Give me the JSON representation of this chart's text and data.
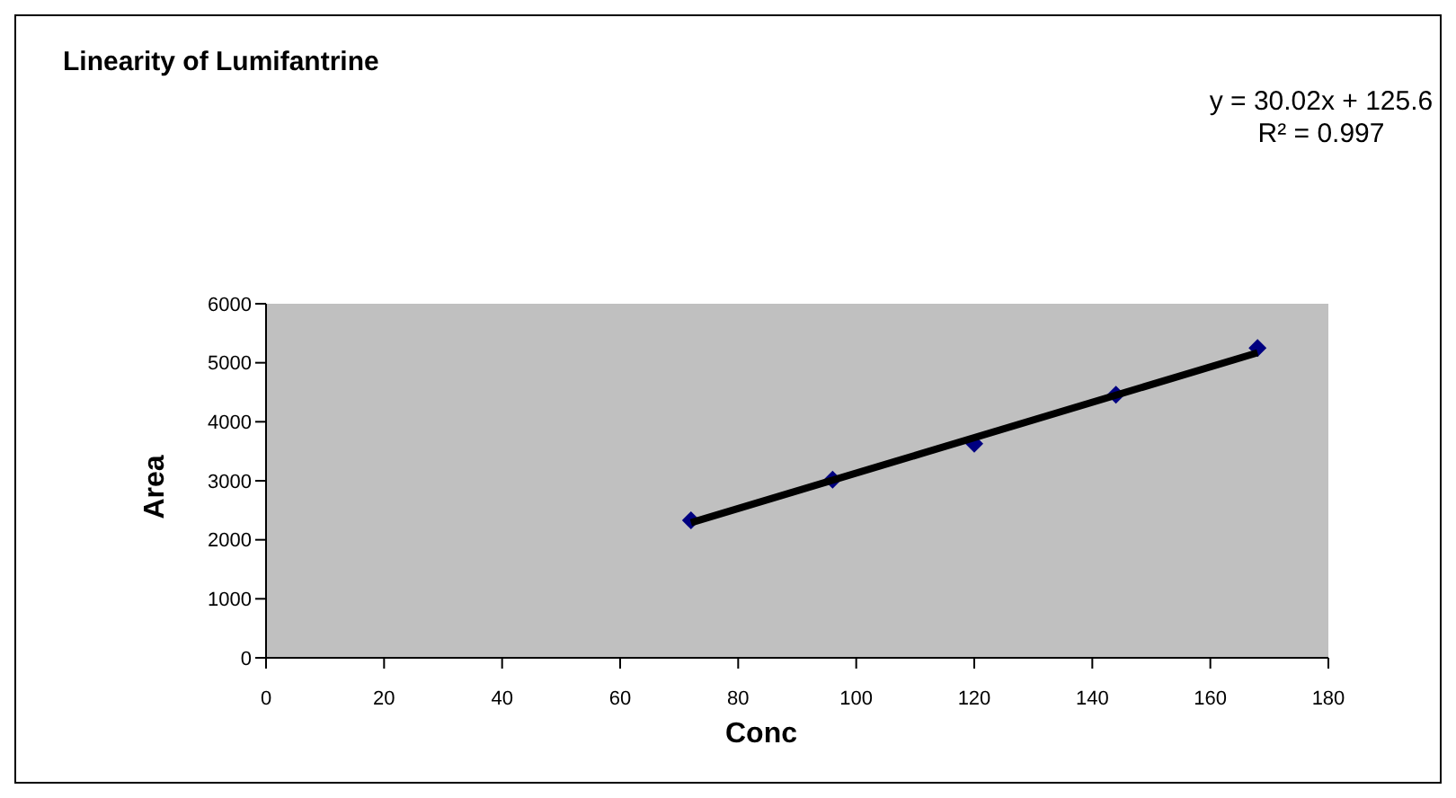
{
  "chart_data": {
    "type": "scatter",
    "title": "Linearity of Lumifantrine",
    "xlabel": "Conc",
    "ylabel": "Area",
    "annotations": [
      "y = 30.02x + 125.6",
      "R² = 0.997"
    ],
    "series": [
      {
        "color": "#000080",
        "marker": "diamond",
        "x": [
          72,
          96,
          120,
          144,
          168
        ],
        "values": [
          2330,
          3020,
          3630,
          4460,
          5250
        ]
      },
      {
        "type": "line",
        "color": "#000000",
        "marker": "none",
        "x": [
          72,
          168
        ],
        "values": [
          2290,
          5170
        ]
      }
    ],
    "xlim": [
      0,
      180
    ],
    "xticks": [
      0,
      20,
      40,
      60,
      80,
      100,
      120,
      140,
      160,
      180
    ],
    "ylim": [
      0,
      6000
    ],
    "yticks": [
      0,
      1000,
      2000,
      3000,
      4000,
      5000,
      6000
    ],
    "grid": false,
    "legend": false
  }
}
